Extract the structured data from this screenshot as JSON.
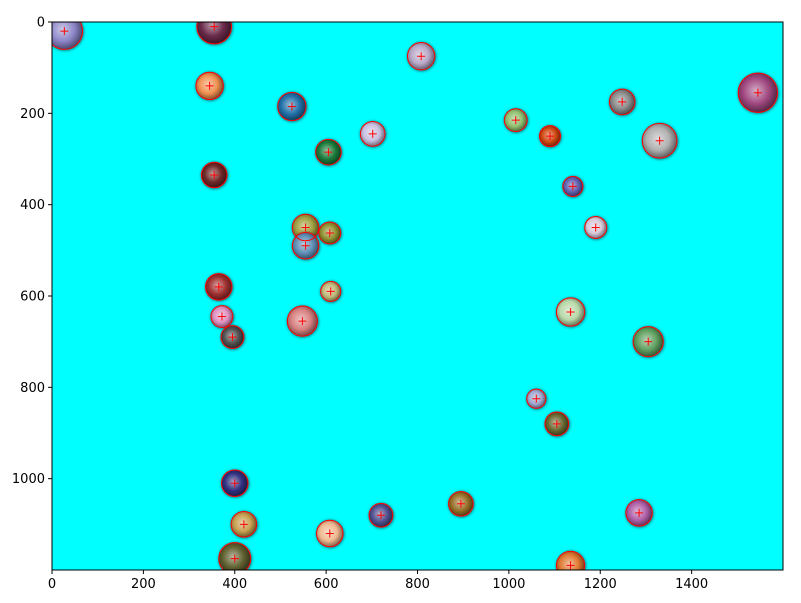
{
  "chart_data": {
    "type": "scatter",
    "title": "",
    "xlabel": "",
    "ylabel": "",
    "xlim": [
      0,
      1600
    ],
    "ylim": [
      1200,
      0
    ],
    "y_inverted": true,
    "grid": false,
    "legend": "none",
    "x_ticks": [
      0,
      200,
      400,
      600,
      800,
      1000,
      1200,
      1400
    ],
    "y_ticks": [
      0,
      200,
      400,
      600,
      800,
      1000
    ],
    "background_color": "#00ffff",
    "detection_color": "#ff0000",
    "marker": "+",
    "blobs": [
      {
        "x": 27,
        "y": 20,
        "r": 40,
        "color": "#8c86c8"
      },
      {
        "x": 355,
        "y": 10,
        "r": 38,
        "color": "#6a2a4a"
      },
      {
        "x": 808,
        "y": 75,
        "r": 30,
        "color": "#b8a8c8"
      },
      {
        "x": 345,
        "y": 140,
        "r": 30,
        "color": "#f09050"
      },
      {
        "x": 525,
        "y": 185,
        "r": 31,
        "color": "#2070a8"
      },
      {
        "x": 1248,
        "y": 175,
        "r": 28,
        "color": "#8a8a8a"
      },
      {
        "x": 1545,
        "y": 155,
        "r": 43,
        "color": "#a04880"
      },
      {
        "x": 1015,
        "y": 215,
        "r": 25,
        "color": "#90c070"
      },
      {
        "x": 702,
        "y": 245,
        "r": 27,
        "color": "#c8c0e0"
      },
      {
        "x": 1090,
        "y": 250,
        "r": 23,
        "color": "#d04810"
      },
      {
        "x": 605,
        "y": 285,
        "r": 28,
        "color": "#1a7a3a"
      },
      {
        "x": 1330,
        "y": 260,
        "r": 38,
        "color": "#b0b0b0"
      },
      {
        "x": 355,
        "y": 335,
        "r": 28,
        "color": "#702828"
      },
      {
        "x": 1140,
        "y": 360,
        "r": 22,
        "color": "#6060b0"
      },
      {
        "x": 1190,
        "y": 450,
        "r": 24,
        "color": "#d8c8d8"
      },
      {
        "x": 555,
        "y": 450,
        "r": 29,
        "color": "#a0a040"
      },
      {
        "x": 608,
        "y": 462,
        "r": 24,
        "color": "#909030"
      },
      {
        "x": 555,
        "y": 490,
        "r": 29,
        "color": "#6090b8"
      },
      {
        "x": 610,
        "y": 590,
        "r": 22,
        "color": "#c0b878"
      },
      {
        "x": 365,
        "y": 580,
        "r": 29,
        "color": "#a03030"
      },
      {
        "x": 1135,
        "y": 635,
        "r": 31,
        "color": "#b8d8a8"
      },
      {
        "x": 548,
        "y": 655,
        "r": 33,
        "color": "#d88080"
      },
      {
        "x": 372,
        "y": 645,
        "r": 24,
        "color": "#e090c0"
      },
      {
        "x": 395,
        "y": 690,
        "r": 25,
        "color": "#505050"
      },
      {
        "x": 1305,
        "y": 700,
        "r": 33,
        "color": "#60a060"
      },
      {
        "x": 1060,
        "y": 825,
        "r": 21,
        "color": "#a0a8d0"
      },
      {
        "x": 1105,
        "y": 880,
        "r": 26,
        "color": "#686830"
      },
      {
        "x": 400,
        "y": 1010,
        "r": 29,
        "color": "#303080"
      },
      {
        "x": 895,
        "y": 1055,
        "r": 27,
        "color": "#987028"
      },
      {
        "x": 720,
        "y": 1080,
        "r": 26,
        "color": "#505090"
      },
      {
        "x": 1285,
        "y": 1075,
        "r": 29,
        "color": "#b060a8"
      },
      {
        "x": 420,
        "y": 1100,
        "r": 28,
        "color": "#c8a050"
      },
      {
        "x": 608,
        "y": 1120,
        "r": 29,
        "color": "#f0b890"
      },
      {
        "x": 400,
        "y": 1175,
        "r": 35,
        "color": "#606030"
      },
      {
        "x": 1135,
        "y": 1190,
        "r": 31,
        "color": "#e07830"
      }
    ]
  }
}
